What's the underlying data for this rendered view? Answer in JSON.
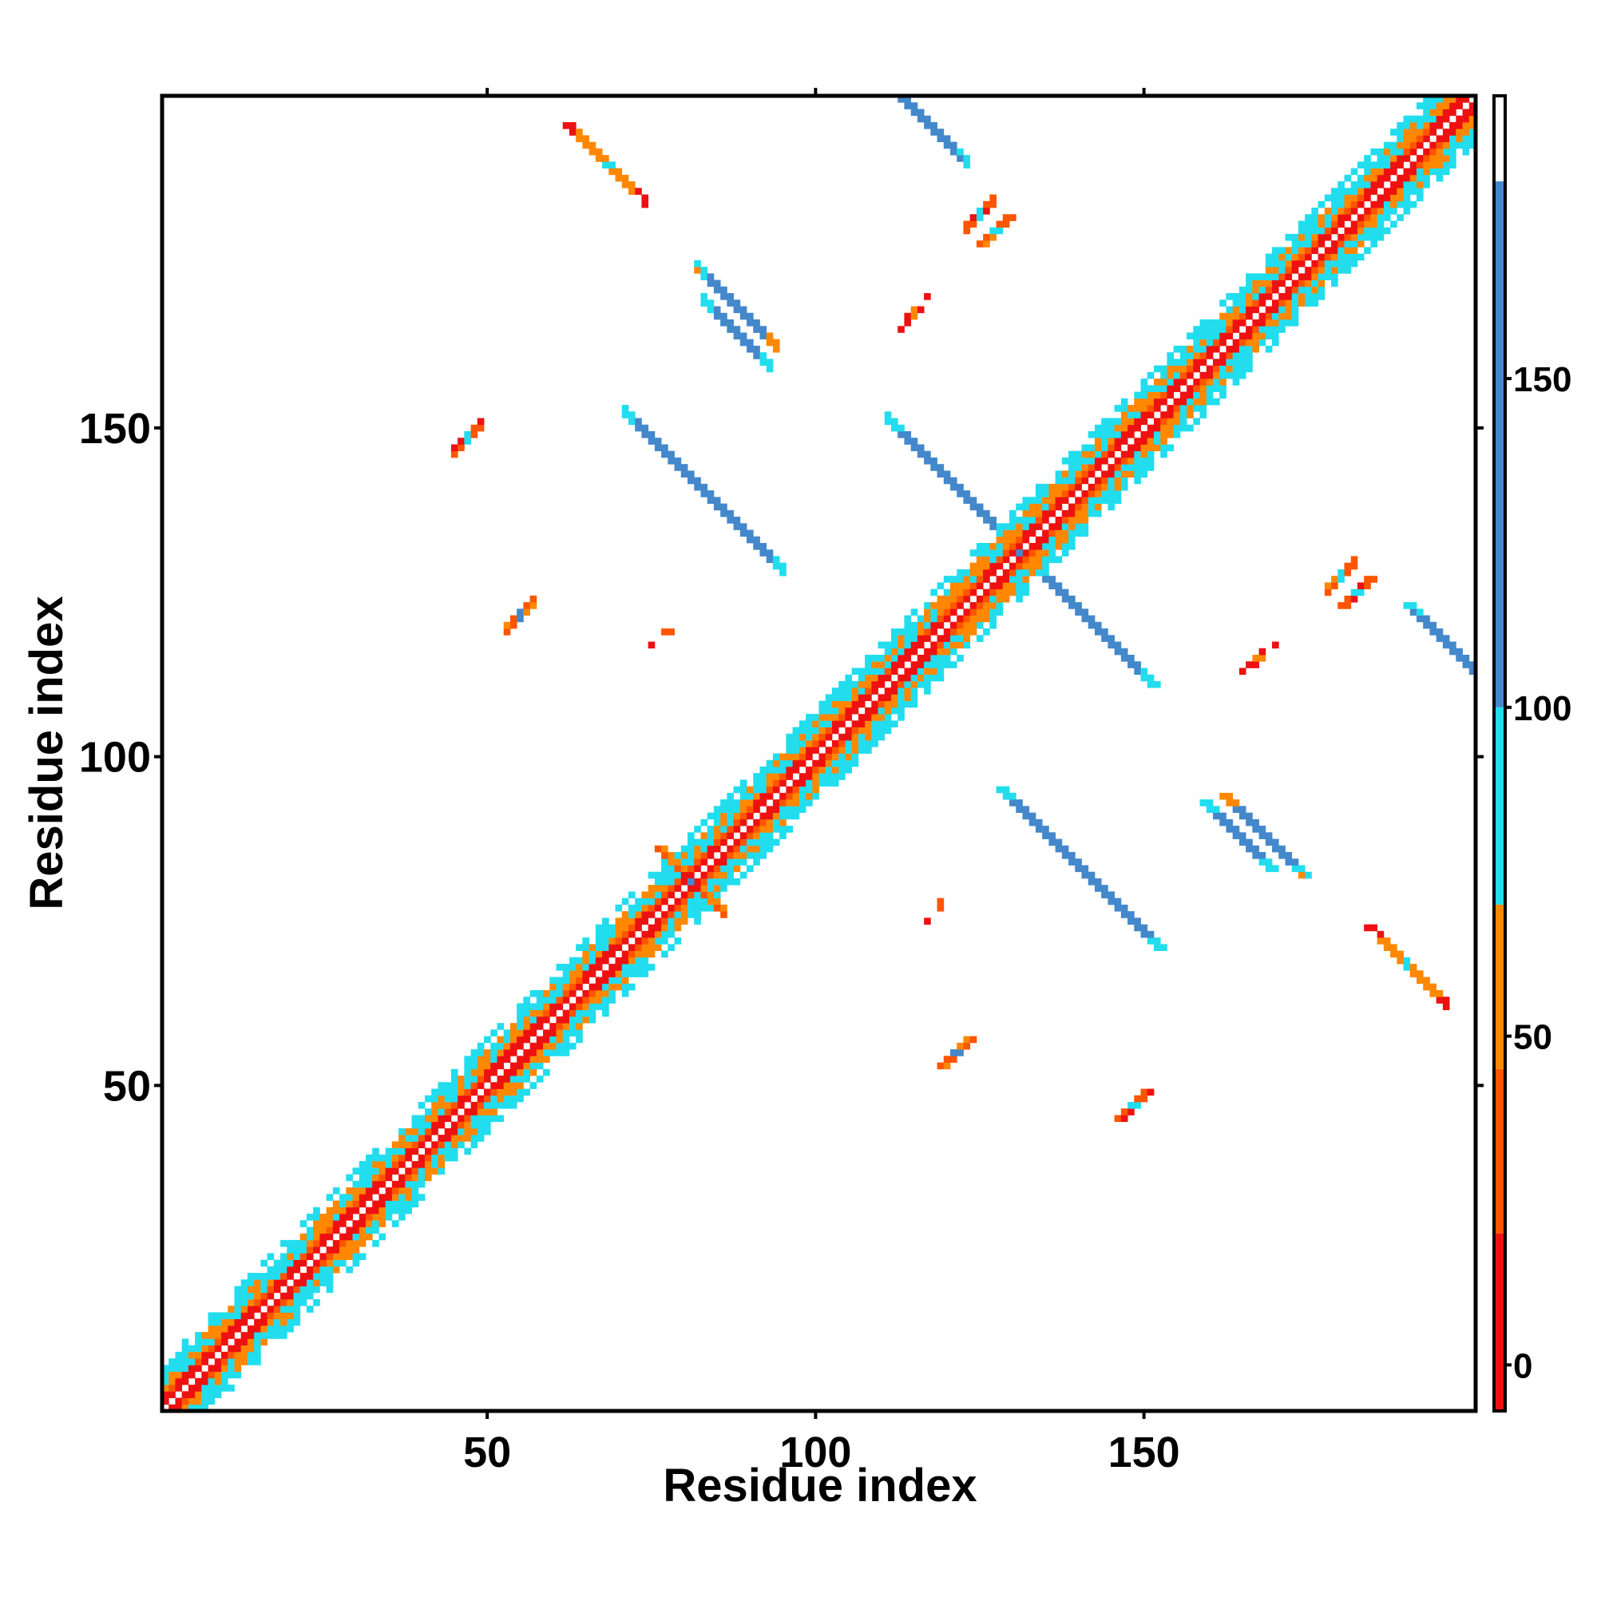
{
  "chart_data": {
    "type": "heatmap",
    "title": "",
    "xlabel": "Residue index",
    "ylabel": "Residue index",
    "xlim": [
      1,
      200
    ],
    "ylim": [
      1,
      200
    ],
    "x_ticks": [
      50,
      100,
      150
    ],
    "y_ticks": [
      50,
      100,
      150
    ],
    "grid": false,
    "colorbar": {
      "range": [
        -7,
        193
      ],
      "ticks": [
        0,
        50,
        100,
        150
      ],
      "bands": [
        {
          "from": -7,
          "to": 20,
          "color": "#ee1111"
        },
        {
          "from": 20,
          "to": 45,
          "color": "#ff5500"
        },
        {
          "from": 45,
          "to": 70,
          "color": "#ff8800"
        },
        {
          "from": 70,
          "to": 100,
          "color": "#22ddee"
        },
        {
          "from": 100,
          "to": 180,
          "color": "#4488cc"
        },
        {
          "from": 180,
          "to": 193,
          "color": "#ffffff"
        }
      ]
    },
    "symmetric": true,
    "features": [
      {
        "kind": "diagonal",
        "from": 1,
        "to": 200,
        "half_width": 7
      },
      {
        "kind": "antiparallel",
        "center": [
          131,
          131
        ],
        "extent": 20,
        "value": 150
      },
      {
        "kind": "antiparallel",
        "center": [
          83,
          140
        ],
        "extent": 12,
        "value": 145
      },
      {
        "kind": "antiparallel",
        "center": [
          88,
          164
        ],
        "extent": 5,
        "value": 145
      },
      {
        "kind": "antiparallel",
        "center": [
          117,
          196
        ],
        "extent": 6,
        "value": 150
      },
      {
        "kind": "antiparallel",
        "center": [
          88,
          168
        ],
        "extent": 6,
        "value": 120
      },
      {
        "kind": "antiparallel",
        "center": [
          82,
          80
        ],
        "extent": 4,
        "value": 110
      },
      {
        "kind": "antiparallel",
        "center": [
          68,
          190
        ],
        "extent": 6,
        "value": 60
      },
      {
        "kind": "parallel",
        "center": [
          55,
          121
        ],
        "extent": 2,
        "value": 110
      },
      {
        "kind": "parallel",
        "center": [
          47,
          148
        ],
        "extent": 2,
        "value": 80
      },
      {
        "kind": "parallel",
        "center": [
          125,
          182
        ],
        "extent": 2,
        "value": 90
      },
      {
        "kind": "parallel",
        "center": [
          115,
          167
        ],
        "extent": 2,
        "value": 60
      },
      {
        "kind": "parallel",
        "center": [
          180,
          127
        ],
        "extent": 2,
        "value": 95
      },
      {
        "kind": "parallel",
        "center": [
          119,
          77
        ],
        "extent": 2,
        "value": 40
      }
    ]
  }
}
